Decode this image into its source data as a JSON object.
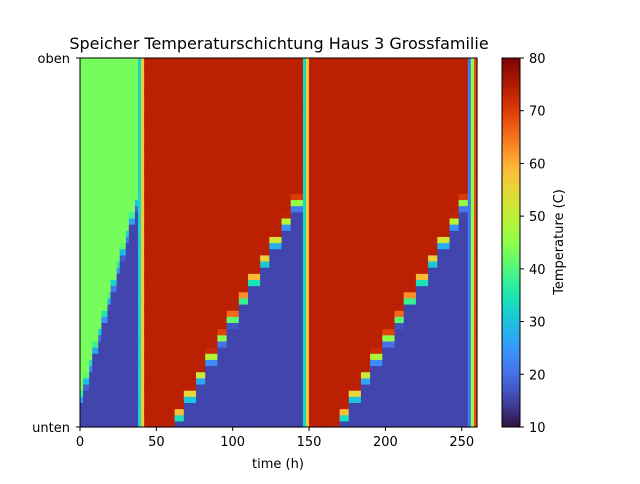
{
  "chart_data": {
    "type": "heatmap",
    "title": "Speicher Temperaturschichtung Haus 3 Grossfamilie",
    "xlabel": "time (h)",
    "ylabel": "",
    "xlim": [
      0,
      260
    ],
    "x_ticks": [
      0,
      50,
      100,
      150,
      200,
      250
    ],
    "y_tick_labels": {
      "top": "oben",
      "bottom": "unten"
    },
    "colorbar": {
      "label": "Temperature (C)",
      "range": [
        10,
        80
      ],
      "ticks": [
        10,
        20,
        30,
        40,
        50,
        60,
        70,
        80
      ],
      "colormap": "turbo"
    },
    "description_values": {
      "cold_zone_temperature": 15,
      "warm_initial_temperature": 43,
      "hot_temperature": 74,
      "charge_events_h": [
        40,
        148,
        257
      ],
      "discharge_phases": [
        {
          "start_h": 0,
          "end_h": 38,
          "start_level": 0.1,
          "end_level": 0.67
        },
        {
          "start_h": 54,
          "end_h": 146,
          "start_level": 0.0,
          "end_level": 0.68
        },
        {
          "start_h": 162,
          "end_h": 256,
          "start_level": 0.0,
          "end_level": 0.68
        }
      ]
    }
  }
}
